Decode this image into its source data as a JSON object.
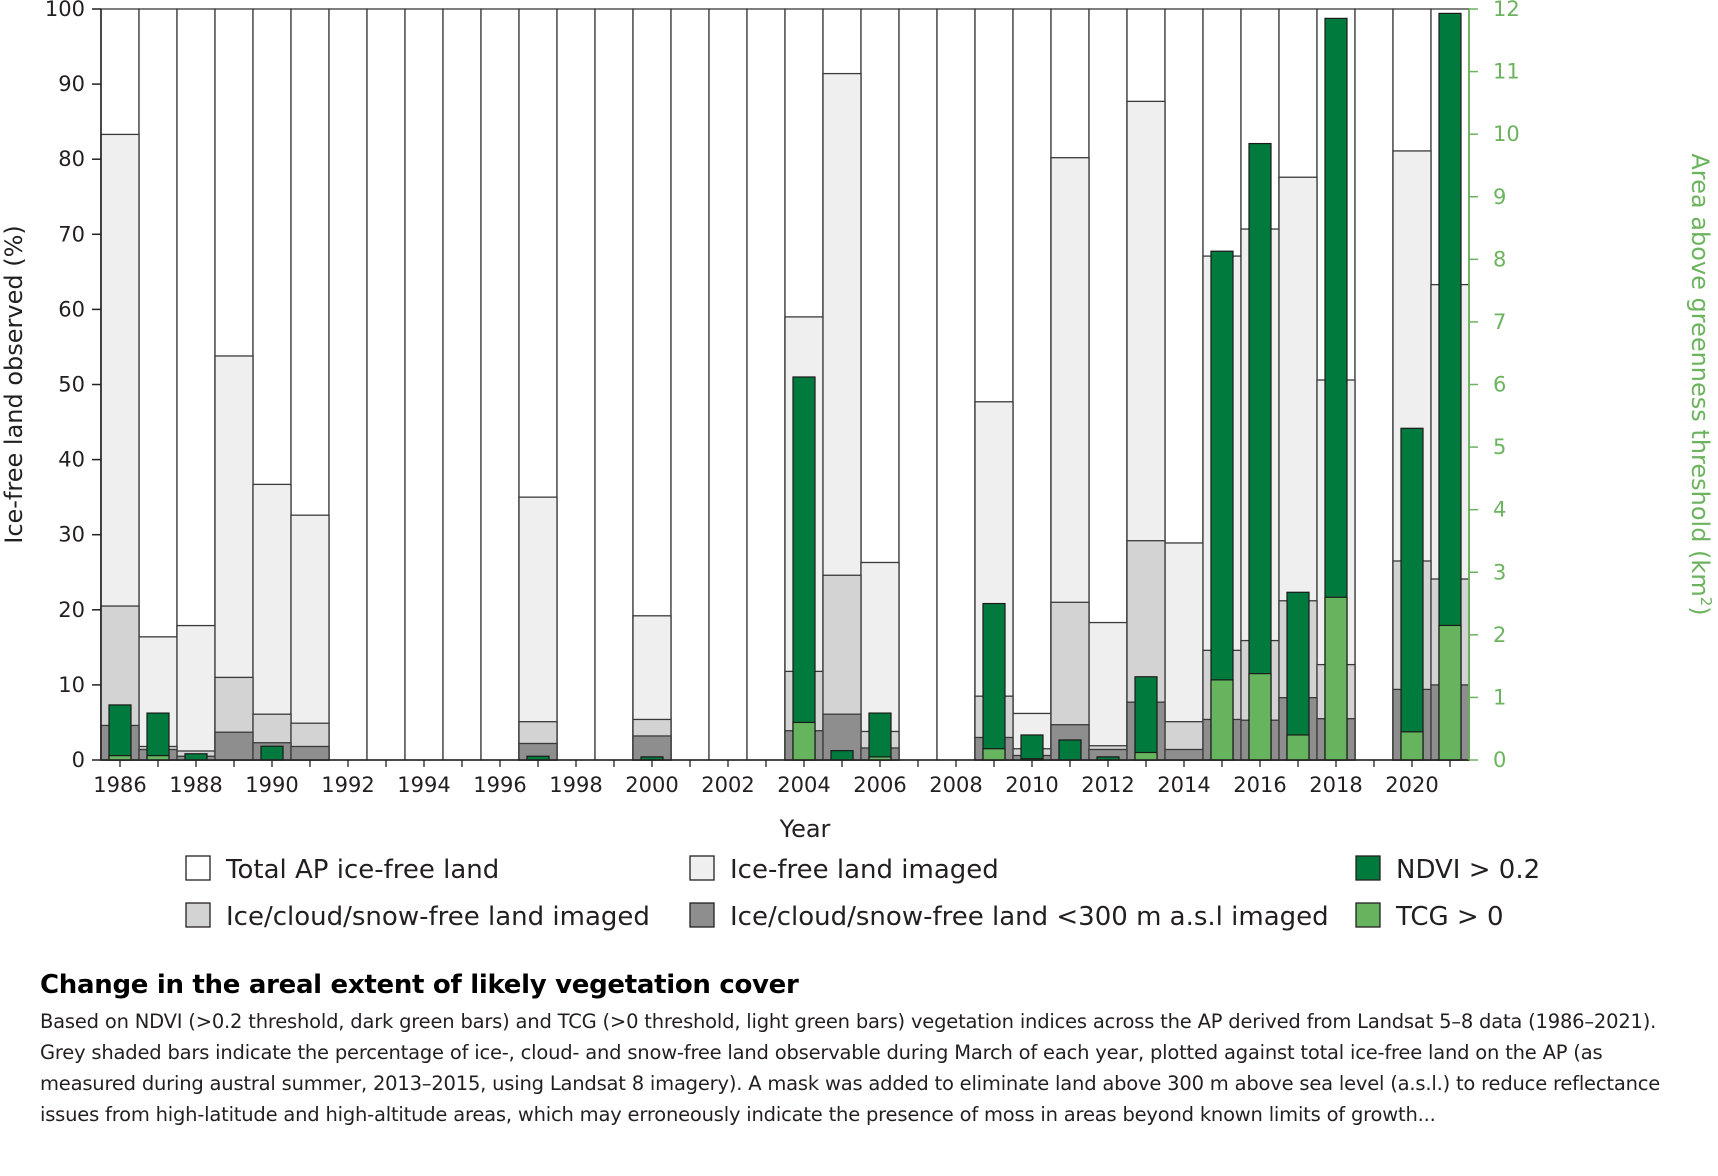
{
  "chart_data": {
    "type": "bar",
    "title": "",
    "xlabel": "Year",
    "ylabel": "Ice-free land observed (%)",
    "y2label": "Area above greenness threshold (km",
    "y2label_sup": "2",
    "y2label_end": ")",
    "ylim": [
      0,
      100
    ],
    "y2lim": [
      0,
      12
    ],
    "grid": false,
    "legend_position": "bottom",
    "x_tick_labels": [
      "1986",
      "1988",
      "1990",
      "1992",
      "1994",
      "1996",
      "1998",
      "2000",
      "2002",
      "2004",
      "2006",
      "2008",
      "2010",
      "2012",
      "2014",
      "2016",
      "2018",
      "2020"
    ],
    "y_tick_labels": [
      "0",
      "10",
      "20",
      "30",
      "40",
      "50",
      "60",
      "70",
      "80",
      "90",
      "100"
    ],
    "y2_tick_labels": [
      "0",
      "1",
      "2",
      "3",
      "4",
      "5",
      "6",
      "7",
      "8",
      "9",
      "10",
      "11",
      "12"
    ],
    "categories": [
      1986,
      1987,
      1988,
      1989,
      1990,
      1991,
      1992,
      1993,
      1994,
      1995,
      1996,
      1997,
      1998,
      1999,
      2000,
      2001,
      2002,
      2003,
      2004,
      2005,
      2006,
      2007,
      2008,
      2009,
      2010,
      2011,
      2012,
      2013,
      2014,
      2015,
      2016,
      2017,
      2018,
      2019,
      2020,
      2021
    ],
    "series": [
      {
        "name": "Total AP ice-free land",
        "axis": "left",
        "color": "#ffffff",
        "values": [
          100,
          100,
          100,
          100,
          100,
          100,
          100,
          100,
          100,
          100,
          100,
          100,
          100,
          100,
          100,
          100,
          100,
          100,
          100,
          100,
          100,
          100,
          100,
          100,
          100,
          100,
          100,
          100,
          100,
          100,
          100,
          100,
          100,
          100,
          100,
          100
        ]
      },
      {
        "name": "Ice-free land imaged",
        "axis": "left",
        "color": "#efefef",
        "values": [
          83.3,
          16.4,
          17.9,
          53.8,
          36.7,
          32.6,
          0,
          0,
          0,
          0,
          0,
          35,
          0,
          0,
          19.2,
          0,
          0,
          0,
          59,
          91.4,
          26.3,
          0,
          0,
          47.7,
          6.2,
          80.2,
          18.3,
          87.7,
          28.9,
          67.1,
          70.7,
          77.6,
          50.6,
          0,
          81.1,
          63.3
        ]
      },
      {
        "name": "Ice/cloud/snow-free land imaged",
        "axis": "left",
        "color": "#d3d3d3",
        "values": [
          20.5,
          1.8,
          1.2,
          11,
          6.1,
          4.9,
          0,
          0,
          0,
          0,
          0,
          5.1,
          0,
          0,
          5.4,
          0,
          0,
          0,
          11.8,
          24.6,
          3.8,
          0,
          0,
          8.5,
          1.5,
          21,
          1.9,
          29.2,
          5.1,
          14.6,
          15.9,
          21.2,
          12.7,
          0,
          26.5,
          24.1
        ]
      },
      {
        "name": "Ice/cloud/snow-free land <300 m a.s.l imaged",
        "axis": "left",
        "color": "#8e8e8e",
        "values": [
          4.6,
          1.4,
          0.5,
          3.7,
          2.3,
          1.8,
          0,
          0,
          0,
          0,
          0,
          2.2,
          0,
          0,
          3.2,
          0,
          0,
          0,
          3.9,
          6.1,
          1.6,
          0,
          0,
          3,
          0.6,
          4.7,
          1.4,
          7.7,
          1.4,
          5.4,
          5.3,
          8.3,
          5.5,
          0,
          9.4,
          10
        ]
      },
      {
        "name": "NDVI > 0.2",
        "axis": "right",
        "color": "#007a3d",
        "values": [
          0.88,
          0.75,
          0.1,
          0,
          0.22,
          0,
          0,
          0,
          0,
          0,
          0,
          0.06,
          0,
          0,
          0.05,
          0,
          0,
          0,
          6.12,
          0.15,
          0.75,
          0,
          0,
          2.5,
          0.4,
          0.32,
          0.05,
          1.33,
          0,
          8.13,
          9.85,
          2.68,
          11.85,
          0,
          5.3,
          11.93
        ]
      },
      {
        "name": "TCG > 0",
        "axis": "right",
        "color": "#66b45e",
        "values": [
          0.07,
          0.07,
          0,
          0,
          0,
          0,
          0,
          0,
          0,
          0,
          0,
          0,
          0,
          0,
          0,
          0,
          0,
          0,
          0.6,
          0,
          0.05,
          0,
          0,
          0.18,
          0.02,
          0,
          0,
          0.12,
          0,
          1.28,
          1.38,
          0.4,
          2.6,
          0,
          0.45,
          2.15
        ]
      }
    ]
  },
  "legend": [
    {
      "label": "Total AP ice-free land",
      "color": "#ffffff"
    },
    {
      "label": "Ice-free land imaged",
      "color": "#efefef"
    },
    {
      "label": "NDVI > 0.2",
      "color": "#007a3d"
    },
    {
      "label": "Ice/cloud/snow-free land imaged",
      "color": "#d3d3d3"
    },
    {
      "label": "Ice/cloud/snow-free land <300 m a.s.l imaged",
      "color": "#8e8e8e"
    },
    {
      "label": "TCG > 0",
      "color": "#66b45e"
    }
  ],
  "caption": {
    "title": "Change in the areal extent of likely vegetation cover",
    "body": "Based on NDVI (>0.2 threshold, dark green bars) and TCG (>0 threshold, light green bars) vegetation indices across the AP derived from Landsat 5–8 data (1986–2021). Grey shaded bars indicate the percentage of ice-, cloud- and snow-free land observable during March of each year, plotted against total ice-free land on the AP (as measured during austral summer, 2013–2015, using Landsat 8 imagery). A mask was added to eliminate land above 300 m above sea level (a.s.l.) to reduce reflectance issues from high-latitude and high-altitude areas, which may erroneously indicate the presence of moss in areas beyond known limits of growth..."
  },
  "colors": {
    "axis": "#231f20",
    "right_axis": "#6cb35e",
    "bar_stroke": "#3a3a3a"
  }
}
